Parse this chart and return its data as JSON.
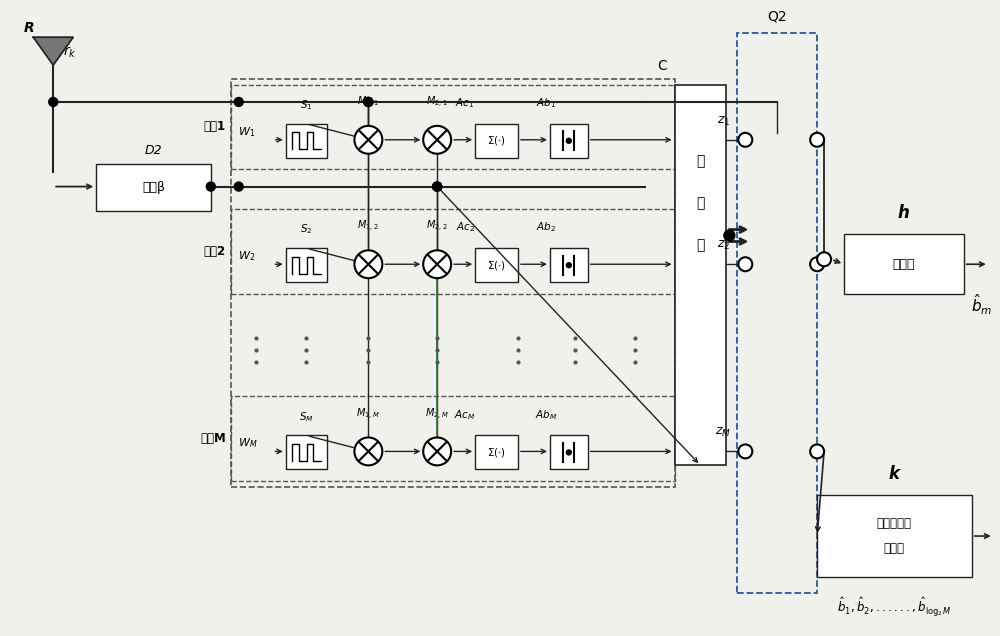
{
  "bg_color": "#f0f0ec",
  "line_color": "#222222",
  "box_color": "#ffffff",
  "dashed_color": "#444444",
  "green_color": "#2d8a2d",
  "antenna_label": "R",
  "delay_box_label": "延时β",
  "branch1_label": "分支1",
  "branch2_label": "分支2",
  "branchM_label": "分支M",
  "comparator_chars": [
    "比",
    "较",
    "器"
  ],
  "decision_label": "判决器",
  "converter_line1": "符号到比特",
  "converter_line2": "转换器",
  "Q2_label": "Q2",
  "h_label": "h",
  "k_label": "k",
  "C_label": "C"
}
